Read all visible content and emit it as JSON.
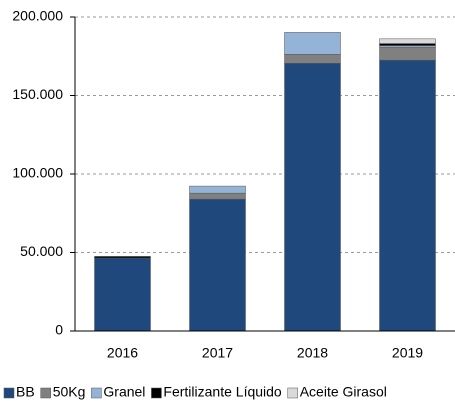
{
  "chart_data": {
    "type": "stacked_bar",
    "categories": [
      "2016",
      "2017",
      "2018",
      "2019"
    ],
    "series": [
      {
        "name": "BB",
        "color": "#1f497d",
        "values": [
          46500,
          84000,
          170500,
          172500
        ]
      },
      {
        "name": "50Kg",
        "color": "#808080",
        "values": [
          0,
          3800,
          5700,
          8300
        ]
      },
      {
        "name": "Granel",
        "color": "#95b3d7",
        "values": [
          0,
          4500,
          14000,
          1000
        ]
      },
      {
        "name": "Fertilizante Líquido",
        "color": "#000000",
        "values": [
          1000,
          0,
          0,
          1300
        ]
      },
      {
        "name": "Aceite Girasol",
        "color": "#d9d9d9",
        "values": [
          0,
          0,
          0,
          3000
        ]
      }
    ],
    "ylim": [
      0,
      200000
    ],
    "yticks": [
      0,
      {
        "value": 50000,
        "label": "50.000"
      },
      {
        "value": 100000,
        "label": "100.000"
      },
      {
        "value": 150000,
        "label": "150.000"
      },
      {
        "value": 200000,
        "label": "200.000"
      }
    ],
    "grid": true,
    "legend": "bottom"
  }
}
